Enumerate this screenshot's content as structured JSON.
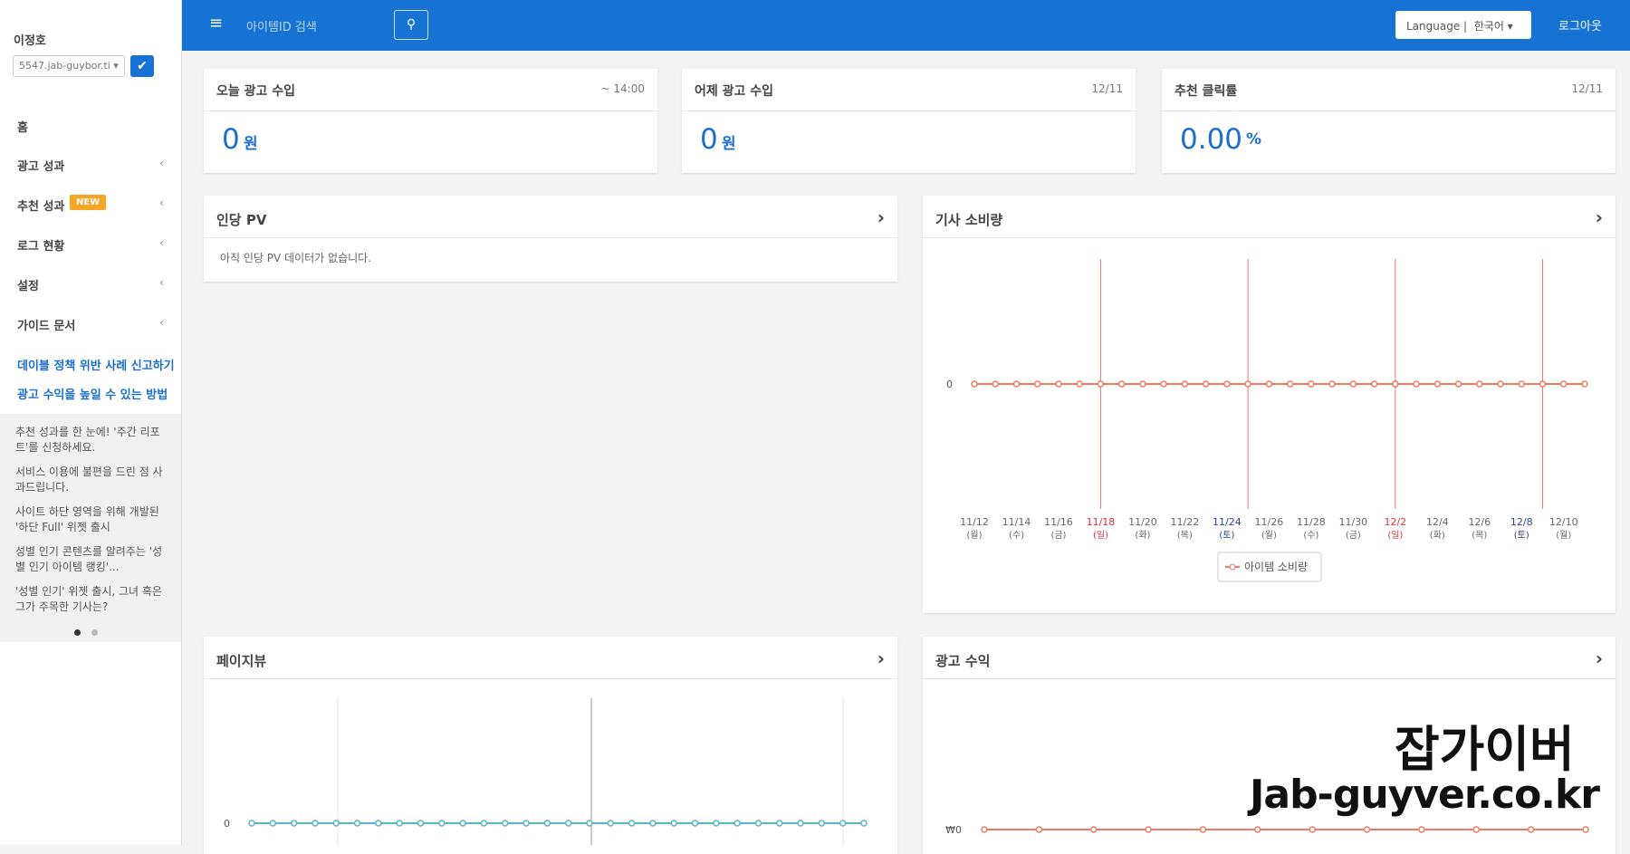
{
  "sidebar": {
    "user": "이정호",
    "site_select": "5547.jab-guybor.ti",
    "menu": [
      {
        "label": "홈"
      },
      {
        "label": "광고 성과"
      },
      {
        "label": "추천 성과",
        "badge": "NEW"
      },
      {
        "label": "로그 현황"
      },
      {
        "label": "설정"
      },
      {
        "label": "가이드 문서"
      }
    ],
    "links": [
      "데이블 정책 위반 사례 신고하기",
      "광고 수익을 높일 수 있는 방법"
    ],
    "notices": [
      "추천 성과를 한 눈에! '주간 리포트'를 신청하세요.",
      "서비스 이용에 불편을 드린 점 사과드립니다.",
      "사이트 하단 영역을 위해 개발된 '하단 Full' 위젯 출시",
      "성별 인기 콘텐츠를 알려주는 '성별 인기 아이템 랭킹'...",
      "'성별 인기' 위젯 출시, 그녀 혹은 그가 주목한 기사는?"
    ]
  },
  "topbar": {
    "search_placeholder": "아이템ID 검색",
    "language": "Language",
    "language_value": "한국어",
    "logout": "로그아웃"
  },
  "cards": [
    {
      "title": "오늘 광고 수입",
      "period": "~ 14:00",
      "value": "0",
      "unit": "원"
    },
    {
      "title": "어제 광고 수입",
      "period": "12/11",
      "value": "0",
      "unit": "원"
    },
    {
      "title": "추천 클릭률",
      "period": "12/11",
      "value": "0.00",
      "unit": "%"
    }
  ],
  "panels": {
    "pv_per_user": {
      "title": "인당 PV",
      "message": "아직 인당 PV 데이터가 없습니다."
    }
  },
  "watermark": {
    "title": "잡가이버",
    "url": "Jab-guyver.co.kr"
  },
  "chart_data": [
    {
      "type": "line",
      "title": "기사 소비량",
      "categories": [
        "11/12",
        null,
        "11/14",
        null,
        "11/16",
        null,
        "11/18",
        null,
        "11/20",
        null,
        "11/22",
        null,
        "11/24",
        null,
        "11/26",
        null,
        "11/28",
        null,
        "11/30",
        null,
        "12/2",
        null,
        "12/4",
        null,
        "12/6",
        null,
        "12/8",
        null,
        "12/10",
        null
      ],
      "weekdays": [
        "(월)",
        null,
        "(수)",
        null,
        "(금)",
        null,
        "(일)",
        null,
        "(화)",
        null,
        "(목)",
        null,
        "(토)",
        null,
        "(월)",
        null,
        "(수)",
        null,
        "(금)",
        null,
        "(일)",
        null,
        "(화)",
        null,
        "(목)",
        null,
        "(토)",
        null,
        "(월)",
        null
      ],
      "category_colors": [
        "#666",
        null,
        "#666",
        null,
        "#666",
        null,
        "#e0333a",
        null,
        "#666",
        null,
        "#666",
        null,
        "#2a3f9e",
        null,
        "#666",
        null,
        "#666",
        null,
        "#666",
        null,
        "#e0333a",
        null,
        "#666",
        null,
        "#666",
        null,
        "#2a3f9e",
        null,
        "#666",
        null
      ],
      "series": [
        {
          "name": "아이템 소비량",
          "color": "#f07a63",
          "values": [
            0,
            0,
            0,
            0,
            0,
            0,
            0,
            0,
            0,
            0,
            0,
            0,
            0,
            0,
            0,
            0,
            0,
            0,
            0,
            0,
            0,
            0,
            0,
            0,
            0,
            0,
            0,
            0,
            0,
            0
          ]
        }
      ],
      "ylim": [
        -1,
        1
      ],
      "yticks": [
        0
      ],
      "legend": "bottom"
    },
    {
      "type": "line",
      "title": "페이지뷰",
      "series": [
        {
          "color": "#5ab3c9",
          "values": [
            0,
            0,
            0,
            0,
            0,
            0,
            0,
            0,
            0,
            0,
            0,
            0,
            0,
            0,
            0,
            0,
            0,
            0,
            0,
            0,
            0,
            0,
            0,
            0,
            0,
            0,
            0,
            0,
            0,
            0
          ]
        }
      ],
      "ylim": [
        -1,
        1
      ],
      "yticks": [
        0
      ]
    },
    {
      "type": "line",
      "title": "광고 수익",
      "series": [
        {
          "color": "#f07a63",
          "values": [
            0,
            0,
            0,
            0,
            0,
            0,
            0,
            0,
            0,
            0,
            0,
            0
          ]
        }
      ],
      "ylim": [
        -1,
        1
      ],
      "yticks": [
        {
          "value": 0,
          "label": "₩0"
        }
      ]
    }
  ]
}
